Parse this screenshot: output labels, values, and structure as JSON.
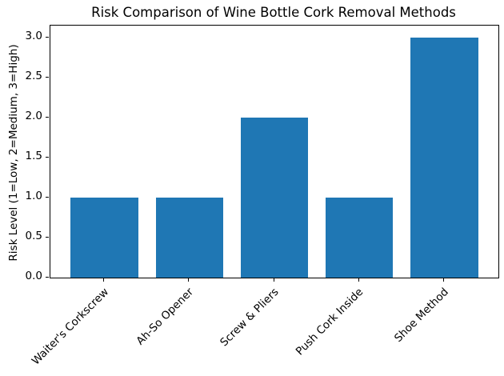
{
  "chart_data": {
    "type": "bar",
    "title": "Risk Comparison of Wine Bottle Cork Removal Methods",
    "categories": [
      "Waiter's Corkscrew",
      "Ah-So Opener",
      "Screw & Pliers",
      "Push Cork Inside",
      "Shoe Method"
    ],
    "values": [
      1,
      1,
      2,
      1,
      3
    ],
    "xlabel": "",
    "ylabel": "Risk Level (1=Low, 2=Medium, 3=High)",
    "xlim": [
      -0.64,
      4.64
    ],
    "ylim": [
      0,
      3.15
    ],
    "yticks": [
      0.0,
      0.5,
      1.0,
      1.5,
      2.0,
      2.5,
      3.0
    ],
    "ytick_labels": [
      "0.0",
      "0.5",
      "1.0",
      "1.5",
      "2.0",
      "2.5",
      "3.0"
    ],
    "bar_width": 0.8,
    "bar_color": "#1f77b4",
    "axis_color": "#000000",
    "x_tick_rotation": 45,
    "grid": false,
    "legend": null
  }
}
